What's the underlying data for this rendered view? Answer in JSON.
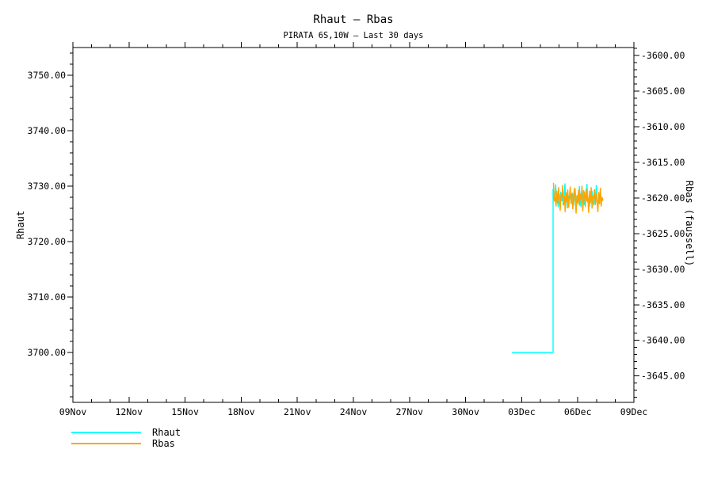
{
  "window": {
    "background": "#ffffff",
    "foreground": "#000000"
  },
  "chart_data": {
    "type": "line",
    "title": "Rhaut — Rbas",
    "subtitle": "PIRATA 6S,10W — Last 30 days",
    "grid": "off",
    "legend_position": "bottom-left",
    "x_axis": {
      "range_days": [
        0,
        30
      ],
      "major_ticks_days": [
        0,
        3,
        6,
        9,
        12,
        15,
        18,
        21,
        24,
        27,
        30
      ],
      "major_tick_labels": [
        "09Nov",
        "12Nov",
        "15Nov",
        "18Nov",
        "21Nov",
        "24Nov",
        "27Nov",
        "30Nov",
        "03Dec",
        "06Dec",
        "09Dec"
      ],
      "minor_tick_step_days": 1
    },
    "y_left": {
      "label": "Rhaut",
      "range": [
        3691,
        3755
      ],
      "major_ticks": [
        3700,
        3710,
        3720,
        3730,
        3740,
        3750
      ],
      "major_tick_labels": [
        "3700.00",
        "3710.00",
        "3720.00",
        "3730.00",
        "3740.00",
        "3750.00"
      ],
      "minor_tick_step": 2
    },
    "y_right": {
      "label": "Rbas (faussell)",
      "range": [
        -3648.7,
        -3598.9
      ],
      "major_ticks": [
        -3645,
        -3640,
        -3635,
        -3630,
        -3625,
        -3620,
        -3615,
        -3610,
        -3605,
        -3600
      ],
      "major_tick_labels": [
        "-3645.00",
        "-3640.00",
        "-3635.00",
        "-3630.00",
        "-3625.00",
        "-3620.00",
        "-3615.00",
        "-3610.00",
        "-3605.00",
        "-3600.00"
      ],
      "minor_tick_step": 1
    },
    "series": [
      {
        "name": "Rhaut",
        "color": "#00ffff",
        "axis": "left",
        "segments": [
          {
            "type": "flat",
            "from_day": 23.47,
            "to_day": 25.68,
            "value": 3700.0
          },
          {
            "type": "samples",
            "start_day": 25.68,
            "step_day": 0.0453,
            "values": [
              3729.5,
              3727.5,
              3728.2,
              3730.3,
              3727.0,
              3727.9,
              3726.2,
              3728.0,
              3727.6,
              3729.0,
              3727.3,
              3728.4,
              3726.5,
              3727.8,
              3730.5,
              3727.2,
              3727.9,
              3726.0,
              3728.3,
              3727.5,
              3729.2,
              3727.0,
              3727.7,
              3728.8,
              3726.4,
              3727.9,
              3729.6,
              3727.1,
              3728.0,
              3726.8,
              3727.5,
              3730.0,
              3727.3,
              3726.2,
              3728.5,
              3727.8,
              3729.3,
              3726.6,
              3727.4,
              3728.1,
              3730.4,
              3727.0,
              3727.8,
              3726.3,
              3728.6,
              3727.2,
              3729.1,
              3727.6,
              3726.5,
              3728.2,
              3727.9,
              3730.2,
              3727.1,
              3726.7,
              3728.4,
              3727.5,
              3729.0,
              3727.2,
              3727.8,
              3727.5
            ]
          }
        ]
      },
      {
        "name": "Rbas",
        "color": "#ffa500",
        "axis": "right",
        "segments": [
          {
            "type": "samples",
            "start_day": 25.7,
            "step_day": 0.0448,
            "values": [
              -3617.9,
              -3620.5,
              -3619.8,
              -3621.2,
              -3619.0,
              -3620.8,
              -3618.5,
              -3620.2,
              -3621.8,
              -3619.5,
              -3620.0,
              -3618.2,
              -3621.0,
              -3619.7,
              -3622.0,
              -3619.2,
              -3620.6,
              -3618.8,
              -3621.4,
              -3619.9,
              -3618.4,
              -3620.9,
              -3619.3,
              -3621.6,
              -3620.1,
              -3618.6,
              -3620.4,
              -3622.2,
              -3619.6,
              -3620.7,
              -3618.9,
              -3621.1,
              -3619.4,
              -3620.3,
              -3618.3,
              -3621.9,
              -3620.0,
              -3619.1,
              -3621.3,
              -3618.7,
              -3620.5,
              -3619.8,
              -3622.1,
              -3619.0,
              -3620.8,
              -3618.5,
              -3621.5,
              -3619.7,
              -3620.2,
              -3618.8,
              -3621.0,
              -3619.4,
              -3620.6,
              -3622.0,
              -3619.2,
              -3620.9,
              -3618.6,
              -3621.2,
              -3619.9,
              -3620.4
            ]
          }
        ]
      }
    ]
  }
}
